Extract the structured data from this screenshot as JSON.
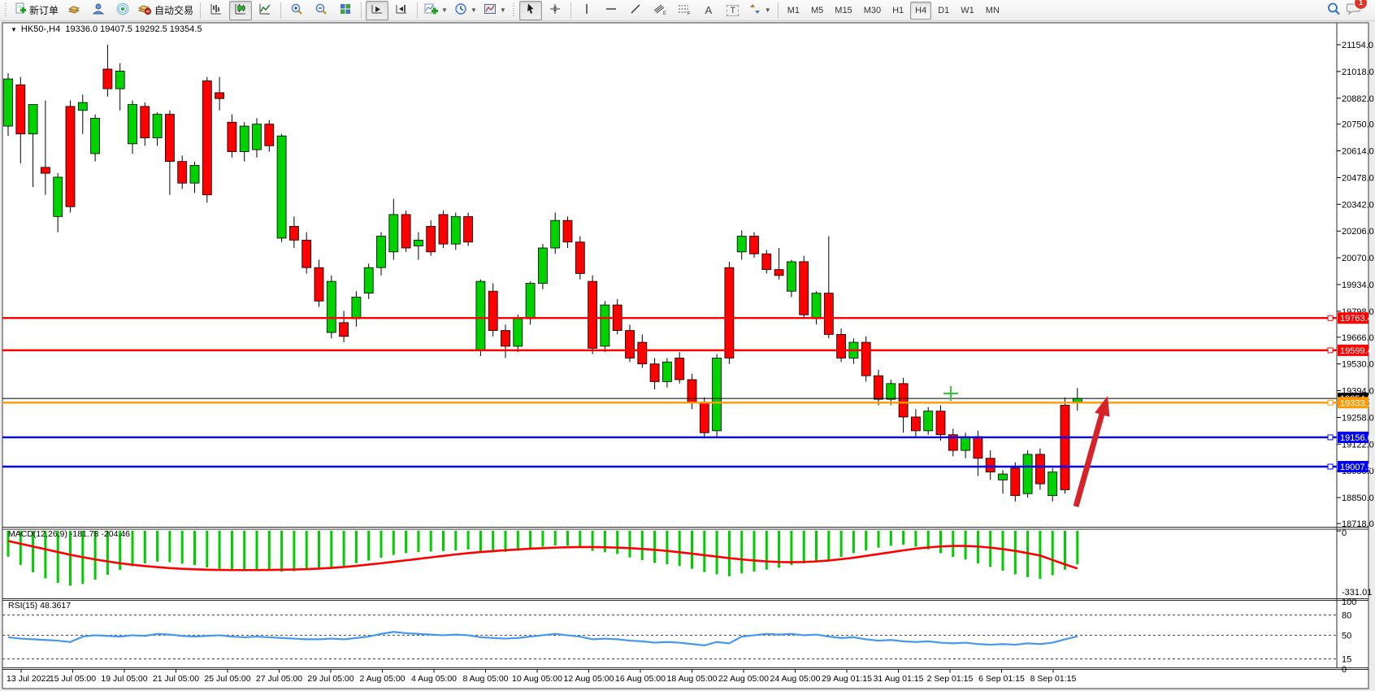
{
  "toolbar": {
    "new_order_label": "新订单",
    "autotrading_label": "自动交易",
    "timeframes": [
      "M1",
      "M5",
      "M15",
      "M30",
      "H1",
      "H4",
      "D1",
      "W1",
      "MN"
    ],
    "active_timeframe": "H4",
    "notification_count": "1",
    "icons": [
      "new-order-icon",
      "gold-box-icon",
      "profile-icon",
      "signal-icon",
      "autotrading-icon",
      "bar-chart-icon",
      "candlestick-icon",
      "line-chart-icon",
      "zoom-in-icon",
      "zoom-out-icon",
      "tile-windows-icon",
      "auto-scroll-icon",
      "chart-shift-icon",
      "indicators-icon",
      "periods-icon",
      "templates-icon",
      "cursor-icon",
      "crosshair-icon",
      "vertical-line-icon",
      "horizontal-line-icon",
      "trendline-icon",
      "channel-icon",
      "fibonacci-icon",
      "text-icon",
      "label-icon",
      "arrows-icon",
      "search-icon",
      "chat-icon"
    ]
  },
  "chart": {
    "title_symbol": "HK50-,H4",
    "title_ohlc": "19336.0 19407.5 19292.5 19354.5"
  },
  "chart_data": {
    "type": "candlestick",
    "symbol": "HK50-",
    "timeframe": "H4",
    "current_bar": {
      "open": 19336.0,
      "high": 19407.5,
      "low": 19292.5,
      "close": 19354.5
    },
    "current_price": 19354.5,
    "price_axis": [
      21154.0,
      21018.0,
      20882.0,
      20750.0,
      20614.0,
      20478.0,
      20342.0,
      20206.0,
      20070.0,
      19934.0,
      19798.0,
      19666.0,
      19530.0,
      19394.0,
      19258.0,
      19122.0,
      18986.0,
      18850.0,
      18718.0
    ],
    "time_axis": [
      "13 Jul 2022",
      "15 Jul 05:00",
      "19 Jul 05:00",
      "21 Jul 05:00",
      "25 Jul 05:00",
      "27 Jul 05:00",
      "29 Jul 05:00",
      "2 Aug 05:00",
      "4 Aug 05:00",
      "8 Aug 05:00",
      "10 Aug 05:00",
      "12 Aug 05:00",
      "16 Aug 05:00",
      "18 Aug 05:00",
      "22 Aug 05:00",
      "24 Aug 05:00",
      "29 Aug 01:15",
      "31 Aug 01:15",
      "2 Sep 01:15",
      "6 Sep 01:15",
      "8 Sep 01:15"
    ],
    "hlines": [
      {
        "price": 19763.4,
        "color": "#ff0000"
      },
      {
        "price": 19599.4,
        "color": "#ff0000"
      },
      {
        "price": 19333.1,
        "color": "#ff9800"
      },
      {
        "price": 19156.6,
        "color": "#0000ff"
      },
      {
        "price": 19007.5,
        "color": "#0000ff"
      }
    ],
    "colors": {
      "up": "#00d200",
      "down": "#ff0000",
      "wick": "#000000",
      "macd_hist": "#00cc00",
      "macd_signal": "#ff0000",
      "rsi_line": "#4499ee",
      "current_price": "#000000",
      "arrow": "#d6232a",
      "cross": "#2ecc2e"
    },
    "candles": [
      [
        20740,
        21010,
        20690,
        20980
      ],
      [
        20950,
        20990,
        20550,
        20700
      ],
      [
        20700,
        20780,
        20430,
        20850
      ],
      [
        20530,
        20870,
        20390,
        20500
      ],
      [
        20280,
        20500,
        20200,
        20480
      ],
      [
        20840,
        20870,
        20300,
        20330
      ],
      [
        20820,
        20900,
        20700,
        20860
      ],
      [
        20600,
        20800,
        20560,
        20780
      ],
      [
        21030,
        21154,
        20890,
        20930
      ],
      [
        20930,
        21060,
        20820,
        21020
      ],
      [
        20650,
        20870,
        20600,
        20850
      ],
      [
        20840,
        20860,
        20640,
        20680
      ],
      [
        20680,
        20810,
        20640,
        20800
      ],
      [
        20800,
        20820,
        20390,
        20560
      ],
      [
        20560,
        20590,
        20420,
        20450
      ],
      [
        20450,
        20560,
        20400,
        20540
      ],
      [
        20970,
        20990,
        20350,
        20390
      ],
      [
        20910,
        20990,
        20820,
        20880
      ],
      [
        20760,
        20800,
        20580,
        20610
      ],
      [
        20610,
        20760,
        20560,
        20740
      ],
      [
        20620,
        20780,
        20580,
        20750
      ],
      [
        20750,
        20770,
        20610,
        20640
      ],
      [
        20170,
        20700,
        20150,
        20690
      ],
      [
        20230,
        20280,
        20120,
        20160
      ],
      [
        20160,
        20200,
        19990,
        20020
      ],
      [
        20020,
        20060,
        19820,
        19850
      ],
      [
        19690,
        19980,
        19660,
        19950
      ],
      [
        19740,
        19800,
        19640,
        19670
      ],
      [
        19760,
        19900,
        19720,
        19870
      ],
      [
        19890,
        20040,
        19860,
        20020
      ],
      [
        20020,
        20200,
        19980,
        20180
      ],
      [
        20100,
        20370,
        20060,
        20290
      ],
      [
        20290,
        20310,
        20100,
        20120
      ],
      [
        20130,
        20200,
        20060,
        20160
      ],
      [
        20230,
        20260,
        20080,
        20100
      ],
      [
        20290,
        20310,
        20120,
        20140
      ],
      [
        20140,
        20300,
        20110,
        20280
      ],
      [
        20280,
        20300,
        20130,
        20150
      ],
      [
        19600,
        19960,
        19570,
        19950
      ],
      [
        19900,
        19940,
        19670,
        19700
      ],
      [
        19700,
        19730,
        19560,
        19620
      ],
      [
        19620,
        19780,
        19590,
        19760
      ],
      [
        19760,
        19950,
        19730,
        19940
      ],
      [
        19940,
        20140,
        19910,
        20120
      ],
      [
        20120,
        20300,
        20090,
        20260
      ],
      [
        20260,
        20280,
        20120,
        20150
      ],
      [
        20150,
        20180,
        19960,
        19990
      ],
      [
        19950,
        19980,
        19580,
        19610
      ],
      [
        19620,
        19850,
        19590,
        19830
      ],
      [
        19830,
        19860,
        19680,
        19700
      ],
      [
        19700,
        19730,
        19540,
        19560
      ],
      [
        19640,
        19680,
        19510,
        19530
      ],
      [
        19530,
        19560,
        19400,
        19440
      ],
      [
        19440,
        19560,
        19410,
        19540
      ],
      [
        19560,
        19590,
        19430,
        19450
      ],
      [
        19450,
        19480,
        19300,
        19330
      ],
      [
        19330,
        19360,
        19150,
        19180
      ],
      [
        19190,
        19580,
        19160,
        19560
      ],
      [
        20020,
        20050,
        19530,
        19560
      ],
      [
        20100,
        20210,
        20060,
        20180
      ],
      [
        20180,
        20200,
        20070,
        20090
      ],
      [
        20090,
        20110,
        19990,
        20010
      ],
      [
        20010,
        20120,
        19960,
        19980
      ],
      [
        19900,
        20060,
        19870,
        20050
      ],
      [
        20050,
        20080,
        19760,
        19780
      ],
      [
        19760,
        19900,
        19730,
        19890
      ],
      [
        19890,
        20180,
        19660,
        19680
      ],
      [
        19680,
        19710,
        19540,
        19560
      ],
      [
        19560,
        19660,
        19530,
        19640
      ],
      [
        19640,
        19670,
        19440,
        19470
      ],
      [
        19470,
        19500,
        19320,
        19350
      ],
      [
        19350,
        19450,
        19320,
        19430
      ],
      [
        19430,
        19460,
        19180,
        19260
      ],
      [
        19260,
        19300,
        19160,
        19190
      ],
      [
        19190,
        19310,
        19170,
        19290
      ],
      [
        19290,
        19320,
        19140,
        19170
      ],
      [
        19170,
        19200,
        19060,
        19090
      ],
      [
        19090,
        19180,
        19050,
        19160
      ],
      [
        19160,
        19190,
        18960,
        19050
      ],
      [
        19050,
        19090,
        18940,
        18980
      ],
      [
        18940,
        18990,
        18870,
        18970
      ],
      [
        19000,
        19030,
        18830,
        18860
      ],
      [
        18870,
        19090,
        18850,
        19070
      ],
      [
        19070,
        19100,
        18890,
        18920
      ],
      [
        18860,
        19000,
        18830,
        18980
      ],
      [
        19320,
        19360,
        18870,
        18890
      ],
      [
        19336,
        19407.5,
        19292.5,
        19354.5
      ]
    ],
    "macd": {
      "name": "MACD(12,26,9)",
      "values": "-181.78 -204.46",
      "zero_label": "0",
      "min_label": "-331.01",
      "histogram": [
        -140,
        -185,
        -225,
        -258,
        -282,
        -298,
        -288,
        -265,
        -238,
        -212,
        -192,
        -177,
        -167,
        -170,
        -178,
        -186,
        -199,
        -206,
        -214,
        -219,
        -216,
        -211,
        -222,
        -219,
        -214,
        -209,
        -201,
        -190,
        -176,
        -161,
        -146,
        -131,
        -121,
        -115,
        -112,
        -110,
        -106,
        -101,
        -114,
        -117,
        -114,
        -108,
        -96,
        -86,
        -79,
        -81,
        -89,
        -109,
        -116,
        -126,
        -144,
        -159,
        -174,
        -181,
        -191,
        -206,
        -224,
        -236,
        -246,
        -231,
        -221,
        -211,
        -201,
        -186,
        -176,
        -166,
        -156,
        -141,
        -121,
        -106,
        -91,
        -81,
        -76,
        -86,
        -101,
        -121,
        -141,
        -156,
        -176,
        -196,
        -216,
        -236,
        -251,
        -261,
        -241,
        -211,
        -181.78
      ],
      "signal": [
        -55,
        -70,
        -85,
        -100,
        -115,
        -130,
        -143,
        -155,
        -166,
        -176,
        -184,
        -191,
        -197,
        -202,
        -206,
        -209,
        -211,
        -212,
        -213,
        -213,
        -213,
        -212,
        -211,
        -210,
        -208,
        -205,
        -201,
        -196,
        -190,
        -183,
        -176,
        -168,
        -160,
        -152,
        -144,
        -136,
        -128,
        -121,
        -115,
        -110,
        -105,
        -101,
        -97,
        -94,
        -91,
        -89,
        -88,
        -88,
        -89,
        -91,
        -94,
        -98,
        -103,
        -109,
        -116,
        -124,
        -132,
        -140,
        -148,
        -155,
        -161,
        -166,
        -169,
        -170,
        -169,
        -166,
        -161,
        -154,
        -146,
        -136,
        -126,
        -116,
        -106,
        -97,
        -90,
        -85,
        -82,
        -82,
        -85,
        -91,
        -99,
        -109,
        -121,
        -134,
        -158,
        -182,
        -204.46
      ]
    },
    "rsi": {
      "name": "RSI(15)",
      "value": "48.3617",
      "levels": [
        100,
        80,
        50,
        15,
        0
      ],
      "dashed_levels": [
        80,
        50,
        15
      ],
      "values": [
        47,
        45,
        44,
        43,
        42,
        40,
        48,
        50,
        49,
        48,
        50,
        49,
        52,
        51,
        49,
        48,
        49,
        50,
        48,
        47,
        48,
        47,
        46,
        45,
        44,
        44,
        45,
        44,
        46,
        48,
        52,
        55,
        53,
        52,
        51,
        50,
        51,
        50,
        47,
        46,
        45,
        46,
        48,
        50,
        52,
        50,
        48,
        44,
        45,
        44,
        42,
        41,
        39,
        40,
        39,
        37,
        35,
        40,
        38,
        48,
        50,
        52,
        51,
        52,
        50,
        51,
        48,
        46,
        47,
        44,
        42,
        43,
        41,
        40,
        41,
        39,
        38,
        39,
        37,
        36,
        37,
        36,
        38,
        37,
        39,
        44,
        48.36
      ]
    },
    "annotations": [
      {
        "type": "arrow-up",
        "color": "#d6232a"
      },
      {
        "type": "cross-marker",
        "color": "#2ecc2e"
      }
    ]
  }
}
